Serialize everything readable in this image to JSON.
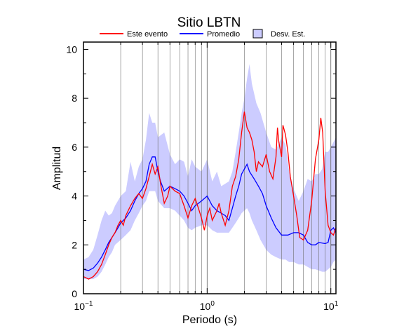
{
  "chart_data": {
    "type": "line",
    "title": "Sitio LBTN",
    "xlabel": "Periodo (s)",
    "ylabel": "Amplitud",
    "xscale": "log",
    "xlim": [
      0.1,
      11
    ],
    "ylim": [
      0,
      10.3
    ],
    "grid": "vertical-log",
    "legend_position": "top",
    "x_tick_labels": [
      {
        "base": "10",
        "exp": "−1"
      },
      {
        "base": "10",
        "exp": "0"
      },
      {
        "base": "10",
        "exp": "1"
      }
    ],
    "y_ticks": [
      0,
      2,
      4,
      6,
      8,
      10
    ],
    "series": [
      {
        "name": "Este evento",
        "color": "#ff0000",
        "points": [
          [
            0.1,
            0.7
          ],
          [
            0.105,
            0.65
          ],
          [
            0.11,
            0.6
          ],
          [
            0.12,
            0.7
          ],
          [
            0.13,
            0.9
          ],
          [
            0.14,
            1.2
          ],
          [
            0.15,
            1.6
          ],
          [
            0.16,
            2.0
          ],
          [
            0.17,
            2.3
          ],
          [
            0.18,
            2.5
          ],
          [
            0.19,
            2.8
          ],
          [
            0.2,
            3.0
          ],
          [
            0.21,
            2.8
          ],
          [
            0.22,
            3.2
          ],
          [
            0.24,
            3.6
          ],
          [
            0.26,
            3.9
          ],
          [
            0.28,
            4.1
          ],
          [
            0.3,
            3.9
          ],
          [
            0.32,
            4.3
          ],
          [
            0.34,
            4.8
          ],
          [
            0.36,
            5.3
          ],
          [
            0.38,
            4.9
          ],
          [
            0.4,
            5.2
          ],
          [
            0.42,
            4.5
          ],
          [
            0.45,
            3.7
          ],
          [
            0.48,
            4.0
          ],
          [
            0.5,
            4.4
          ],
          [
            0.55,
            4.2
          ],
          [
            0.6,
            4.1
          ],
          [
            0.65,
            3.6
          ],
          [
            0.7,
            3.1
          ],
          [
            0.75,
            3.6
          ],
          [
            0.8,
            3.9
          ],
          [
            0.85,
            3.5
          ],
          [
            0.9,
            3.1
          ],
          [
            0.95,
            2.6
          ],
          [
            1.0,
            3.2
          ],
          [
            1.05,
            3.5
          ],
          [
            1.1,
            3.0
          ],
          [
            1.2,
            3.4
          ],
          [
            1.25,
            3.7
          ],
          [
            1.3,
            3.3
          ],
          [
            1.4,
            2.8
          ],
          [
            1.5,
            3.4
          ],
          [
            1.6,
            4.4
          ],
          [
            1.7,
            4.8
          ],
          [
            1.8,
            5.5
          ],
          [
            1.9,
            6.6
          ],
          [
            2.0,
            7.45
          ],
          [
            2.1,
            6.8
          ],
          [
            2.2,
            6.6
          ],
          [
            2.3,
            6.3
          ],
          [
            2.4,
            5.8
          ],
          [
            2.5,
            5.0
          ],
          [
            2.6,
            5.4
          ],
          [
            2.8,
            5.2
          ],
          [
            3.0,
            5.7
          ],
          [
            3.2,
            5.0
          ],
          [
            3.4,
            4.7
          ],
          [
            3.6,
            5.6
          ],
          [
            3.7,
            6.8
          ],
          [
            3.8,
            6.2
          ],
          [
            4.0,
            5.6
          ],
          [
            4.1,
            6.9
          ],
          [
            4.3,
            6.5
          ],
          [
            4.5,
            5.8
          ],
          [
            4.7,
            4.8
          ],
          [
            5.0,
            4.0
          ],
          [
            5.3,
            3.2
          ],
          [
            5.6,
            2.3
          ],
          [
            6.0,
            2.2
          ],
          [
            6.5,
            2.6
          ],
          [
            7.0,
            3.8
          ],
          [
            7.5,
            5.5
          ],
          [
            8.0,
            6.3
          ],
          [
            8.3,
            7.2
          ],
          [
            8.6,
            6.6
          ],
          [
            9.0,
            4.2
          ],
          [
            9.5,
            2.8
          ],
          [
            10.0,
            2.5
          ],
          [
            10.5,
            2.4
          ],
          [
            11.0,
            2.7
          ]
        ]
      },
      {
        "name": "Promedio",
        "color": "#0000ff",
        "points": [
          [
            0.1,
            1.0
          ],
          [
            0.11,
            0.95
          ],
          [
            0.12,
            1.05
          ],
          [
            0.13,
            1.25
          ],
          [
            0.14,
            1.5
          ],
          [
            0.15,
            1.8
          ],
          [
            0.16,
            2.1
          ],
          [
            0.17,
            2.3
          ],
          [
            0.18,
            2.5
          ],
          [
            0.19,
            2.7
          ],
          [
            0.2,
            2.9
          ],
          [
            0.22,
            3.1
          ],
          [
            0.24,
            3.4
          ],
          [
            0.26,
            3.8
          ],
          [
            0.28,
            4.1
          ],
          [
            0.3,
            4.3
          ],
          [
            0.32,
            4.6
          ],
          [
            0.34,
            5.3
          ],
          [
            0.36,
            5.6
          ],
          [
            0.38,
            5.6
          ],
          [
            0.4,
            5.0
          ],
          [
            0.42,
            4.6
          ],
          [
            0.45,
            4.2
          ],
          [
            0.5,
            4.4
          ],
          [
            0.55,
            4.3
          ],
          [
            0.6,
            4.2
          ],
          [
            0.65,
            4.0
          ],
          [
            0.7,
            3.7
          ],
          [
            0.75,
            3.4
          ],
          [
            0.8,
            3.6
          ],
          [
            0.9,
            3.8
          ],
          [
            1.0,
            4.0
          ],
          [
            1.1,
            3.6
          ],
          [
            1.2,
            3.4
          ],
          [
            1.3,
            3.3
          ],
          [
            1.4,
            3.2
          ],
          [
            1.5,
            3.0
          ],
          [
            1.6,
            3.5
          ],
          [
            1.7,
            4.0
          ],
          [
            1.8,
            4.4
          ],
          [
            1.9,
            4.9
          ],
          [
            2.0,
            5.1
          ],
          [
            2.1,
            5.3
          ],
          [
            2.2,
            5.0
          ],
          [
            2.4,
            4.7
          ],
          [
            2.6,
            4.4
          ],
          [
            2.8,
            4.1
          ],
          [
            3.0,
            3.6
          ],
          [
            3.3,
            3.1
          ],
          [
            3.6,
            2.7
          ],
          [
            4.0,
            2.4
          ],
          [
            4.5,
            2.4
          ],
          [
            5.0,
            2.5
          ],
          [
            5.5,
            2.5
          ],
          [
            6.0,
            2.4
          ],
          [
            6.5,
            2.1
          ],
          [
            7.0,
            2.0
          ],
          [
            7.5,
            2.0
          ],
          [
            8.0,
            2.1
          ],
          [
            9.0,
            2.05
          ],
          [
            9.5,
            2.1
          ],
          [
            10.0,
            2.6
          ],
          [
            10.5,
            2.7
          ],
          [
            11.0,
            2.5
          ]
        ]
      },
      {
        "name": "Desv. Est.",
        "color": "#ccccff",
        "upper": [
          [
            0.1,
            1.4
          ],
          [
            0.11,
            1.5
          ],
          [
            0.12,
            1.8
          ],
          [
            0.13,
            2.4
          ],
          [
            0.14,
            3.0
          ],
          [
            0.15,
            3.4
          ],
          [
            0.16,
            3.2
          ],
          [
            0.17,
            3.3
          ],
          [
            0.18,
            3.6
          ],
          [
            0.2,
            4.0
          ],
          [
            0.22,
            4.2
          ],
          [
            0.24,
            5.4
          ],
          [
            0.26,
            4.6
          ],
          [
            0.28,
            5.2
          ],
          [
            0.3,
            5.5
          ],
          [
            0.32,
            6.3
          ],
          [
            0.34,
            7.4
          ],
          [
            0.36,
            7.0
          ],
          [
            0.38,
            7.0
          ],
          [
            0.4,
            6.4
          ],
          [
            0.45,
            6.6
          ],
          [
            0.5,
            5.7
          ],
          [
            0.55,
            5.3
          ],
          [
            0.6,
            5.5
          ],
          [
            0.65,
            5.4
          ],
          [
            0.7,
            4.8
          ],
          [
            0.75,
            5.5
          ],
          [
            0.8,
            5.2
          ],
          [
            0.9,
            5.0
          ],
          [
            1.0,
            5.5
          ],
          [
            1.1,
            4.6
          ],
          [
            1.2,
            5.0
          ],
          [
            1.3,
            4.4
          ],
          [
            1.5,
            4.6
          ],
          [
            1.6,
            5.0
          ],
          [
            1.7,
            5.8
          ],
          [
            1.8,
            6.6
          ],
          [
            1.9,
            7.4
          ],
          [
            2.0,
            8.0
          ],
          [
            2.1,
            8.8
          ],
          [
            2.2,
            9.4
          ],
          [
            2.3,
            8.6
          ],
          [
            2.5,
            7.8
          ],
          [
            2.7,
            7.4
          ],
          [
            3.0,
            6.6
          ],
          [
            3.3,
            6.0
          ],
          [
            3.6,
            5.9
          ],
          [
            4.0,
            6.4
          ],
          [
            4.3,
            6.1
          ],
          [
            4.6,
            5.0
          ],
          [
            5.0,
            4.3
          ],
          [
            5.5,
            3.8
          ],
          [
            6.0,
            4.2
          ],
          [
            6.5,
            4.7
          ],
          [
            7.0,
            4.6
          ],
          [
            7.5,
            4.9
          ],
          [
            8.0,
            4.9
          ],
          [
            8.5,
            5.1
          ],
          [
            9.0,
            5.8
          ],
          [
            9.5,
            5.8
          ],
          [
            10.0,
            6.0
          ],
          [
            10.5,
            6.2
          ],
          [
            11.0,
            6.4
          ]
        ],
        "lower": [
          [
            0.1,
            0.6
          ],
          [
            0.11,
            0.6
          ],
          [
            0.12,
            0.6
          ],
          [
            0.13,
            0.7
          ],
          [
            0.14,
            0.9
          ],
          [
            0.15,
            1.2
          ],
          [
            0.16,
            1.5
          ],
          [
            0.17,
            1.7
          ],
          [
            0.18,
            2.0
          ],
          [
            0.2,
            2.2
          ],
          [
            0.22,
            2.4
          ],
          [
            0.24,
            2.6
          ],
          [
            0.26,
            3.0
          ],
          [
            0.28,
            3.3
          ],
          [
            0.3,
            3.6
          ],
          [
            0.32,
            3.8
          ],
          [
            0.34,
            4.2
          ],
          [
            0.36,
            4.2
          ],
          [
            0.38,
            4.2
          ],
          [
            0.4,
            3.8
          ],
          [
            0.45,
            3.5
          ],
          [
            0.5,
            3.5
          ],
          [
            0.55,
            3.4
          ],
          [
            0.6,
            3.2
          ],
          [
            0.65,
            3.0
          ],
          [
            0.7,
            2.7
          ],
          [
            0.75,
            2.6
          ],
          [
            0.8,
            2.7
          ],
          [
            0.9,
            2.8
          ],
          [
            1.0,
            2.8
          ],
          [
            1.1,
            2.6
          ],
          [
            1.2,
            2.5
          ],
          [
            1.3,
            2.5
          ],
          [
            1.5,
            2.5
          ],
          [
            1.6,
            2.7
          ],
          [
            1.7,
            2.9
          ],
          [
            1.8,
            3.1
          ],
          [
            1.9,
            3.3
          ],
          [
            2.0,
            3.4
          ],
          [
            2.1,
            3.5
          ],
          [
            2.2,
            3.3
          ],
          [
            2.3,
            3.0
          ],
          [
            2.5,
            2.6
          ],
          [
            2.7,
            2.2
          ],
          [
            3.0,
            1.8
          ],
          [
            3.3,
            1.6
          ],
          [
            3.6,
            1.5
          ],
          [
            4.0,
            1.4
          ],
          [
            4.3,
            1.4
          ],
          [
            4.6,
            1.3
          ],
          [
            5.0,
            1.3
          ],
          [
            5.5,
            1.2
          ],
          [
            6.0,
            1.2
          ],
          [
            6.5,
            1.1
          ],
          [
            7.0,
            1.0
          ],
          [
            7.5,
            1.0
          ],
          [
            8.0,
            0.95
          ],
          [
            8.5,
            0.9
          ],
          [
            9.0,
            0.9
          ],
          [
            9.5,
            1.0
          ],
          [
            10.0,
            1.1
          ],
          [
            10.5,
            1.3
          ],
          [
            11.0,
            1.4
          ]
        ]
      }
    ]
  }
}
